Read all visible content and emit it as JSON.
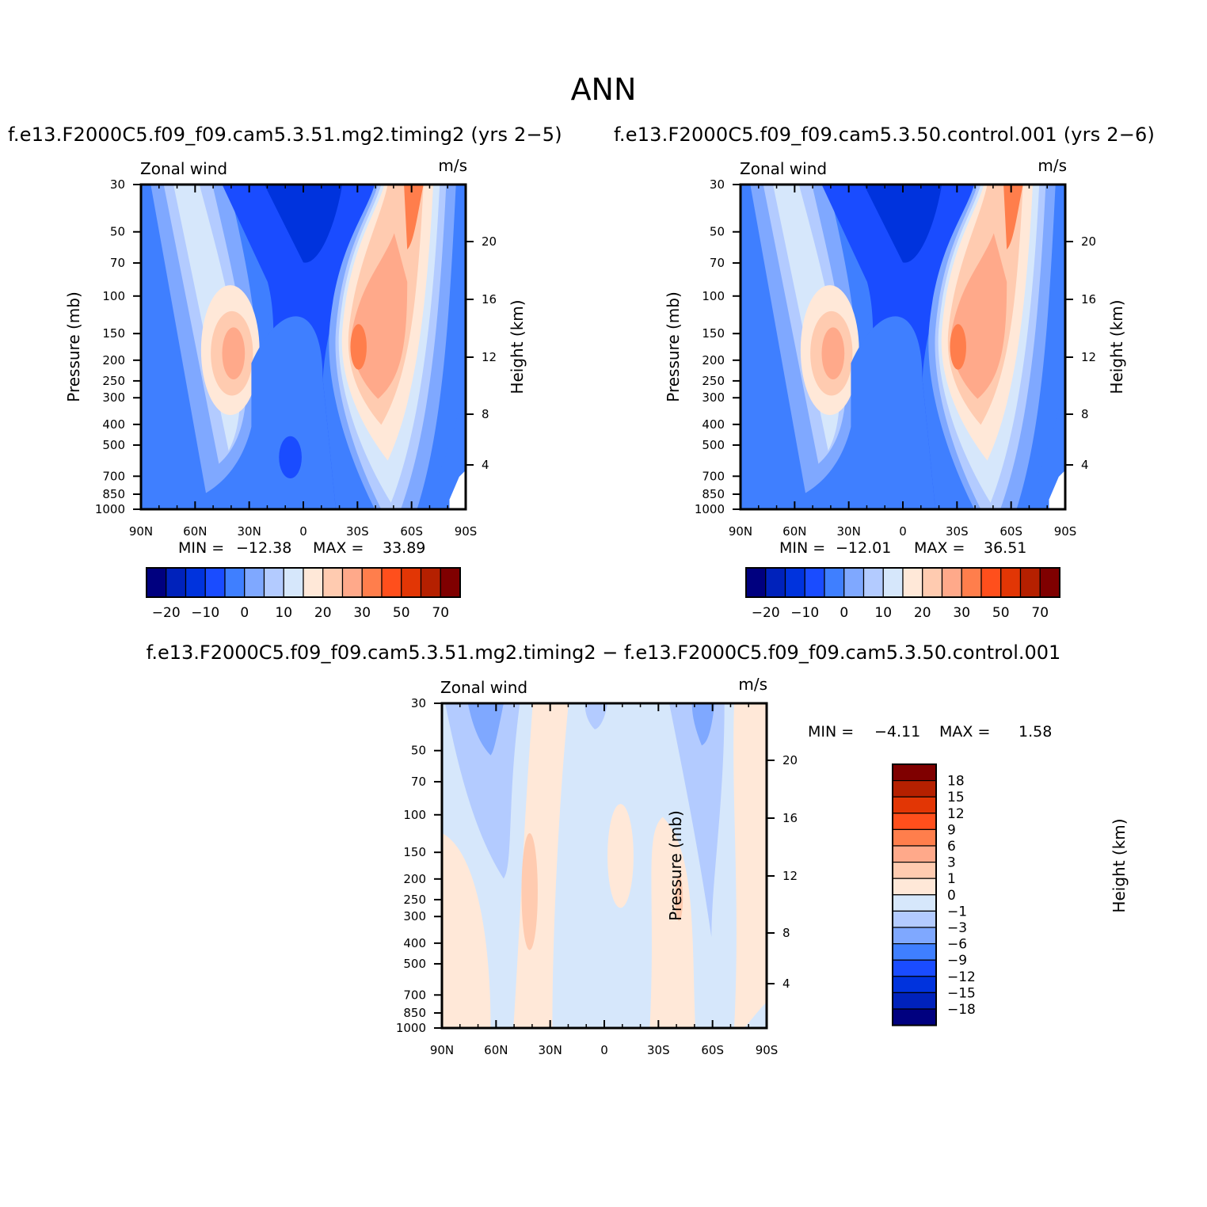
{
  "title": "ANN",
  "chart_data": [
    {
      "id": "case1",
      "type": "heatmap",
      "title": "f.e13.F2000C5.f09_f09.cam5.3.51.mg2.timing2 (yrs 2−5)",
      "field_label": "Zonal wind",
      "units": "m/s",
      "xlabel": "",
      "ylabel": "Pressure (mb)",
      "ylabel_right": "Height (km)",
      "x_ticks": [
        "90N",
        "60N",
        "30N",
        "0",
        "30S",
        "60S",
        "90S"
      ],
      "y_ticks": [
        "30",
        "50",
        "70",
        "100",
        "150",
        "200",
        "250",
        "300",
        "400",
        "500",
        "700",
        "850",
        "1000"
      ],
      "y_ticks_right": [
        "20",
        "16",
        "12",
        "8",
        "4"
      ],
      "min_label": "MIN =",
      "min_value": "−12.38",
      "max_label": "MAX =",
      "max_value": "33.89",
      "colorbar_labels": [
        "−20",
        "−10",
        "0",
        "10",
        "20",
        "30",
        "50",
        "70"
      ]
    },
    {
      "id": "case2",
      "type": "heatmap",
      "title": "f.e13.F2000C5.f09_f09.cam5.3.50.control.001 (yrs 2−6)",
      "field_label": "Zonal wind",
      "units": "m/s",
      "xlabel": "",
      "ylabel": "Pressure (mb)",
      "ylabel_right": "Height (km)",
      "x_ticks": [
        "90N",
        "60N",
        "30N",
        "0",
        "30S",
        "60S",
        "90S"
      ],
      "y_ticks": [
        "30",
        "50",
        "70",
        "100",
        "150",
        "200",
        "250",
        "300",
        "400",
        "500",
        "700",
        "850",
        "1000"
      ],
      "y_ticks_right": [
        "20",
        "16",
        "12",
        "8",
        "4"
      ],
      "min_label": "MIN =",
      "min_value": "−12.01",
      "max_label": "MAX =",
      "max_value": "36.51",
      "colorbar_labels": [
        "−20",
        "−10",
        "0",
        "10",
        "20",
        "30",
        "50",
        "70"
      ]
    },
    {
      "id": "diff",
      "type": "heatmap",
      "title": "f.e13.F2000C5.f09_f09.cam5.3.51.mg2.timing2 − f.e13.F2000C5.f09_f09.cam5.3.50.control.001",
      "field_label": "Zonal wind",
      "units": "m/s",
      "xlabel": "",
      "ylabel": "Pressure (mb)",
      "ylabel_right": "Height (km)",
      "x_ticks": [
        "90N",
        "60N",
        "30N",
        "0",
        "30S",
        "60S",
        "90S"
      ],
      "y_ticks": [
        "30",
        "50",
        "70",
        "100",
        "150",
        "200",
        "250",
        "300",
        "400",
        "500",
        "700",
        "850",
        "1000"
      ],
      "y_ticks_right": [
        "20",
        "16",
        "12",
        "8",
        "4"
      ],
      "min_label": "MIN =",
      "min_value": "−4.11",
      "max_label": "MAX =",
      "max_value": "1.58",
      "colorbar_labels": [
        "18",
        "15",
        "12",
        "9",
        "6",
        "3",
        "1",
        "0",
        "−1",
        "−3",
        "−6",
        "−9",
        "−12",
        "−15",
        "−18"
      ]
    }
  ],
  "colors": {
    "case_palette": [
      "#00007f",
      "#0022bb",
      "#0033dd",
      "#1a4cff",
      "#3f7fff",
      "#7fa8ff",
      "#b3cbff",
      "#d6e7fb",
      "#ffe8d8",
      "#ffcbb0",
      "#ffa98a",
      "#ff7e4c",
      "#ff4f1c",
      "#e23605",
      "#b52000",
      "#7f0000"
    ],
    "diff_palette": [
      "#00007f",
      "#0022bb",
      "#0033dd",
      "#1a4cff",
      "#3f7fff",
      "#7fa8ff",
      "#b3cbff",
      "#d6e7fb",
      "#ffe8d8",
      "#ffcbb0",
      "#ffa98a",
      "#ff7e4c",
      "#ff4f1c",
      "#e23605",
      "#b52000",
      "#7f0000"
    ]
  }
}
